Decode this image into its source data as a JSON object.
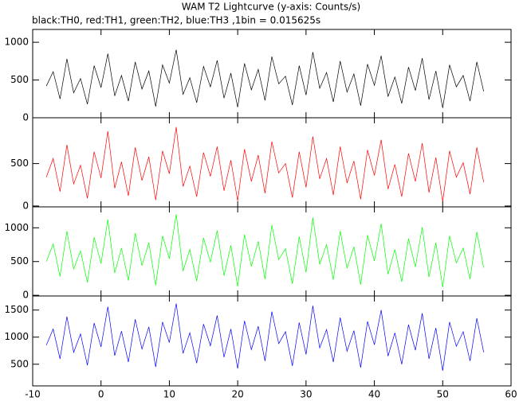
{
  "chart_data": [
    {
      "type": "line",
      "title": "WAM T2 Lightcurve (y-axis: Counts/s)",
      "subtitle": "black:TH0, red:TH1, green:TH2, blue:TH3 ,1bin = 0.015625s",
      "x": [
        -8,
        -7,
        -6,
        -5,
        -4,
        -3,
        -2,
        -1,
        0,
        1,
        2,
        3,
        4,
        5,
        6,
        7,
        8,
        9,
        10,
        11,
        12,
        13,
        14,
        15,
        16,
        17,
        18,
        19,
        20,
        21,
        22,
        23,
        24,
        25,
        26,
        27,
        28,
        29,
        30,
        31,
        32,
        33,
        34,
        35,
        36,
        37,
        38,
        39,
        40,
        41,
        42,
        43,
        44,
        45,
        46,
        47,
        48,
        49,
        50,
        51,
        52,
        53,
        54,
        55,
        56
      ],
      "xlim": [
        -10,
        60
      ],
      "ylim": [
        0,
        1170
      ],
      "yticks": [
        0,
        500,
        1000
      ],
      "series": [
        {
          "name": "TH0",
          "color": "#000000",
          "values": [
            420,
            610,
            250,
            780,
            330,
            520,
            180,
            690,
            400,
            850,
            290,
            560,
            220,
            740,
            380,
            620,
            150,
            700,
            460,
            900,
            310,
            530,
            200,
            680,
            410,
            760,
            260,
            590,
            140,
            720,
            370,
            640,
            230,
            810,
            450,
            550,
            170,
            690,
            300,
            870,
            390,
            600,
            210,
            750,
            340,
            580,
            160,
            710,
            430,
            820,
            280,
            540,
            190,
            670,
            360,
            790,
            240,
            620,
            130,
            700,
            410,
            560,
            220,
            740,
            350
          ]
        }
      ]
    },
    {
      "type": "line",
      "x": [
        -8,
        -7,
        -6,
        -5,
        -4,
        -3,
        -2,
        -1,
        0,
        1,
        2,
        3,
        4,
        5,
        6,
        7,
        8,
        9,
        10,
        11,
        12,
        13,
        14,
        15,
        16,
        17,
        18,
        19,
        20,
        21,
        22,
        23,
        24,
        25,
        26,
        27,
        28,
        29,
        30,
        31,
        32,
        33,
        34,
        35,
        36,
        37,
        38,
        39,
        40,
        41,
        42,
        43,
        44,
        45,
        46,
        47,
        48,
        49,
        50,
        51,
        52,
        53,
        54,
        55,
        56
      ],
      "xlim": [
        -10,
        60
      ],
      "ylim": [
        -10,
        1040
      ],
      "yticks": [
        0,
        500
      ],
      "series": [
        {
          "name": "TH1",
          "color": "#ff0000",
          "values": [
            340,
            560,
            170,
            720,
            260,
            480,
            90,
            640,
            330,
            880,
            210,
            520,
            120,
            690,
            300,
            580,
            70,
            650,
            380,
            930,
            230,
            470,
            110,
            630,
            350,
            700,
            180,
            540,
            60,
            670,
            290,
            600,
            150,
            760,
            390,
            500,
            100,
            640,
            220,
            820,
            320,
            560,
            130,
            700,
            270,
            530,
            80,
            660,
            360,
            780,
            200,
            490,
            110,
            620,
            290,
            740,
            160,
            570,
            50,
            650,
            340,
            510,
            140,
            690,
            280
          ]
        }
      ]
    },
    {
      "type": "line",
      "x": [
        -8,
        -7,
        -6,
        -5,
        -4,
        -3,
        -2,
        -1,
        0,
        1,
        2,
        3,
        4,
        5,
        6,
        7,
        8,
        9,
        10,
        11,
        12,
        13,
        14,
        15,
        16,
        17,
        18,
        19,
        20,
        21,
        22,
        23,
        24,
        25,
        26,
        27,
        28,
        29,
        30,
        31,
        32,
        33,
        34,
        35,
        36,
        37,
        38,
        39,
        40,
        41,
        42,
        43,
        44,
        45,
        46,
        47,
        48,
        49,
        50,
        51,
        52,
        53,
        54,
        55,
        56
      ],
      "xlim": [
        -10,
        60
      ],
      "ylim": [
        -10,
        1310
      ],
      "yticks": [
        0,
        500,
        1000
      ],
      "series": [
        {
          "name": "TH2",
          "color": "#00ff00",
          "values": [
            500,
            760,
            280,
            950,
            390,
            660,
            190,
            860,
            470,
            1120,
            330,
            700,
            220,
            920,
            440,
            780,
            150,
            880,
            540,
            1200,
            360,
            680,
            210,
            850,
            490,
            960,
            290,
            740,
            130,
            900,
            430,
            800,
            240,
            1040,
            530,
            690,
            170,
            870,
            340,
            1150,
            460,
            750,
            230,
            950,
            400,
            720,
            160,
            890,
            510,
            1060,
            310,
            680,
            200,
            840,
            420,
            1010,
            270,
            780,
            120,
            880,
            480,
            700,
            240,
            940,
            410
          ]
        }
      ]
    },
    {
      "type": "line",
      "x": [
        -8,
        -7,
        -6,
        -5,
        -4,
        -3,
        -2,
        -1,
        0,
        1,
        2,
        3,
        4,
        5,
        6,
        7,
        8,
        9,
        10,
        11,
        12,
        13,
        14,
        15,
        16,
        17,
        18,
        19,
        20,
        21,
        22,
        23,
        24,
        25,
        26,
        27,
        28,
        29,
        30,
        31,
        32,
        33,
        34,
        35,
        36,
        37,
        38,
        39,
        40,
        41,
        42,
        43,
        44,
        45,
        46,
        47,
        48,
        49,
        50,
        51,
        52,
        53,
        54,
        55,
        56
      ],
      "xlim": [
        -10,
        60
      ],
      "ylim": [
        100,
        1760
      ],
      "yticks": [
        500,
        1000,
        1500
      ],
      "xticks": [
        -10,
        0,
        10,
        20,
        30,
        40,
        50,
        60
      ],
      "series": [
        {
          "name": "TH3",
          "color": "#0000ff",
          "values": [
            850,
            1150,
            600,
            1380,
            720,
            1060,
            480,
            1260,
            820,
            1560,
            660,
            1110,
            540,
            1330,
            780,
            1190,
            450,
            1280,
            900,
            1620,
            700,
            1080,
            520,
            1240,
            840,
            1400,
            630,
            1150,
            420,
            1300,
            770,
            1200,
            560,
            1470,
            880,
            1100,
            470,
            1270,
            680,
            1580,
            800,
            1140,
            540,
            1360,
            740,
            1120,
            440,
            1290,
            860,
            1500,
            650,
            1080,
            500,
            1230,
            760,
            1440,
            600,
            1170,
            380,
            1280,
            830,
            1100,
            560,
            1350,
            720
          ]
        }
      ]
    }
  ]
}
